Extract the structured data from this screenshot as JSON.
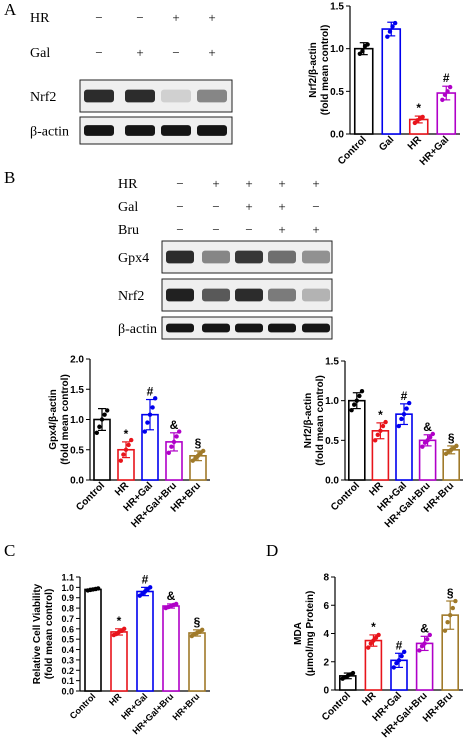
{
  "panels": {
    "A": "A",
    "B": "B",
    "C": "C",
    "D": "D"
  },
  "blots": {
    "A": {
      "conditions": [
        {
          "label": "HR",
          "signs": [
            "−",
            "−",
            "+",
            "+"
          ]
        },
        {
          "label": "Gal",
          "signs": [
            "−",
            "+",
            "−",
            "+"
          ]
        }
      ],
      "bands": [
        {
          "label": "Nrf2",
          "intensity": [
            0.85,
            0.85,
            0.12,
            0.45
          ]
        },
        {
          "label": "β-actin",
          "intensity": [
            0.95,
            0.95,
            0.95,
            0.95
          ]
        }
      ]
    },
    "B": {
      "conditions": [
        {
          "label": "HR",
          "signs": [
            "−",
            "+",
            "+",
            "+",
            "+"
          ]
        },
        {
          "label": "Gal",
          "signs": [
            "−",
            "−",
            "+",
            "+",
            "−"
          ]
        },
        {
          "label": "Bru",
          "signs": [
            "−",
            "−",
            "−",
            "+",
            "+"
          ]
        }
      ],
      "bands": [
        {
          "label": "Gpx4",
          "intensity": [
            0.85,
            0.45,
            0.8,
            0.55,
            0.4
          ]
        },
        {
          "label": "Nrf2",
          "intensity": [
            0.9,
            0.65,
            0.85,
            0.5,
            0.25
          ]
        },
        {
          "label": "β-actin",
          "intensity": [
            0.95,
            0.95,
            0.95,
            0.95,
            0.95
          ]
        }
      ]
    }
  },
  "chart_data": [
    {
      "id": "A-nrf2",
      "type": "bar",
      "ylabel": [
        "Nrf2/β-actin",
        "(fold mean control)"
      ],
      "ylim": [
        0,
        1.5
      ],
      "yticks": [
        0.0,
        0.5,
        1.0,
        1.5
      ],
      "ytick_labels": [
        "0.0",
        "0.5",
        "1.0",
        "1.5"
      ],
      "categories": [
        "Control",
        "Gal",
        "HR",
        "HR+Gal"
      ],
      "values": [
        1.0,
        1.23,
        0.17,
        0.48
      ],
      "errors": [
        0.07,
        0.08,
        0.04,
        0.08
      ],
      "colors": [
        "#000000",
        "#0000ee",
        "#e8141b",
        "#b000c8"
      ],
      "annotations": [
        "",
        "",
        "*",
        "#"
      ],
      "points": [
        [
          0.94,
          0.97,
          1.03,
          1.05
        ],
        [
          1.14,
          1.2,
          1.26,
          1.3
        ],
        [
          0.13,
          0.16,
          0.18,
          0.2
        ],
        [
          0.4,
          0.46,
          0.5,
          0.55
        ]
      ]
    },
    {
      "id": "B-gpx4",
      "type": "bar",
      "ylabel": [
        "Gpx4/β-actin",
        "(fold mean control)"
      ],
      "ylim": [
        0,
        2.0
      ],
      "yticks": [
        0.0,
        0.5,
        1.0,
        1.5,
        2.0
      ],
      "ytick_labels": [
        "0.0",
        "0.5",
        "1.0",
        "1.5",
        "2.0"
      ],
      "categories": [
        "Control",
        "HR",
        "HR+Gal",
        "HR+Gal+Bru",
        "HR+Bru"
      ],
      "values": [
        1.0,
        0.5,
        1.08,
        0.63,
        0.4
      ],
      "errors": [
        0.18,
        0.13,
        0.25,
        0.15,
        0.08
      ],
      "colors": [
        "#000000",
        "#e8141b",
        "#0000ee",
        "#b000c8",
        "#a07a2a"
      ],
      "annotations": [
        "",
        "*",
        "#",
        "&",
        "§"
      ],
      "points": [
        [
          0.78,
          0.88,
          1.0,
          1.08,
          1.15
        ],
        [
          0.32,
          0.42,
          0.5,
          0.58,
          0.66
        ],
        [
          0.8,
          0.95,
          1.08,
          1.2,
          1.35
        ],
        [
          0.45,
          0.55,
          0.63,
          0.72,
          0.8
        ],
        [
          0.32,
          0.36,
          0.4,
          0.44,
          0.48
        ]
      ]
    },
    {
      "id": "B-nrf2",
      "type": "bar",
      "ylabel": [
        "Nrf2/β-actin",
        "(fold mean control)"
      ],
      "ylim": [
        0,
        1.5
      ],
      "yticks": [
        0.0,
        0.5,
        1.0,
        1.5
      ],
      "ytick_labels": [
        "0.0",
        "0.5",
        "1.0",
        "1.5"
      ],
      "categories": [
        "Control",
        "HR",
        "HR+Gal",
        "HR+Gal+Bru",
        "HR+Bru"
      ],
      "values": [
        1.0,
        0.62,
        0.83,
        0.5,
        0.38
      ],
      "errors": [
        0.1,
        0.1,
        0.13,
        0.07,
        0.05
      ],
      "colors": [
        "#000000",
        "#e8141b",
        "#0000ee",
        "#b000c8",
        "#a07a2a"
      ],
      "annotations": [
        "",
        "*",
        "#",
        "&",
        "§"
      ],
      "points": [
        [
          0.88,
          0.95,
          1.0,
          1.06,
          1.12
        ],
        [
          0.5,
          0.57,
          0.62,
          0.68,
          0.73
        ],
        [
          0.68,
          0.77,
          0.83,
          0.9,
          0.97
        ],
        [
          0.42,
          0.47,
          0.5,
          0.54,
          0.58
        ],
        [
          0.33,
          0.36,
          0.38,
          0.4,
          0.43
        ]
      ]
    },
    {
      "id": "C-viability",
      "type": "bar",
      "ylabel": [
        "Relative Cell Viability",
        "(fold mean control)"
      ],
      "ylim": [
        0,
        1.1
      ],
      "yticks": [
        0.0,
        0.1,
        0.2,
        0.3,
        0.4,
        0.5,
        0.6,
        0.7,
        0.8,
        0.9,
        1.0,
        1.1
      ],
      "ytick_labels": [
        "0.0",
        "0.1",
        "0.2",
        "0.3",
        "0.4",
        "0.5",
        "0.6",
        "0.7",
        "0.8",
        "0.9",
        "1.0",
        "1.1"
      ],
      "categories": [
        "Control",
        "HR",
        "HR+Gal",
        "HR+Gal+Bru",
        "HR+Bru"
      ],
      "values": [
        0.98,
        0.57,
        0.96,
        0.82,
        0.56
      ],
      "errors": [
        0.01,
        0.03,
        0.04,
        0.02,
        0.03
      ],
      "colors": [
        "#000000",
        "#e8141b",
        "#0000ee",
        "#b000c8",
        "#a07a2a"
      ],
      "annotations": [
        "",
        "*",
        "#",
        "&",
        "§"
      ],
      "points": [
        [
          0.97,
          0.975,
          0.98,
          0.985,
          0.99
        ],
        [
          0.54,
          0.55,
          0.57,
          0.58,
          0.6
        ],
        [
          0.92,
          0.94,
          0.96,
          0.98,
          1.0
        ],
        [
          0.8,
          0.81,
          0.82,
          0.83,
          0.84
        ],
        [
          0.53,
          0.55,
          0.56,
          0.57,
          0.59
        ]
      ]
    },
    {
      "id": "D-mda",
      "type": "bar",
      "ylabel": [
        "MDA",
        "(μmol/mg Protein)"
      ],
      "ylim": [
        0,
        8
      ],
      "yticks": [
        0,
        2,
        4,
        6,
        8
      ],
      "ytick_labels": [
        "0",
        "2",
        "4",
        "6",
        "8"
      ],
      "categories": [
        "Control",
        "HR",
        "HR+Gal",
        "HR+Gal+Bru",
        "HR+Bru"
      ],
      "values": [
        1.0,
        3.5,
        2.1,
        3.3,
        5.3
      ],
      "errors": [
        0.2,
        0.4,
        0.5,
        0.5,
        1.0
      ],
      "colors": [
        "#000000",
        "#e8141b",
        "#0000ee",
        "#b000c8",
        "#a07a2a"
      ],
      "annotations": [
        "",
        "*",
        "#",
        "&",
        "§"
      ],
      "points": [
        [
          0.8,
          0.9,
          1.0,
          1.1,
          1.2
        ],
        [
          3.0,
          3.3,
          3.5,
          3.7,
          3.9
        ],
        [
          1.6,
          1.9,
          2.1,
          2.4,
          2.7
        ],
        [
          2.8,
          3.1,
          3.3,
          3.6,
          3.9
        ],
        [
          4.2,
          4.8,
          5.3,
          5.8,
          6.3
        ]
      ]
    }
  ]
}
